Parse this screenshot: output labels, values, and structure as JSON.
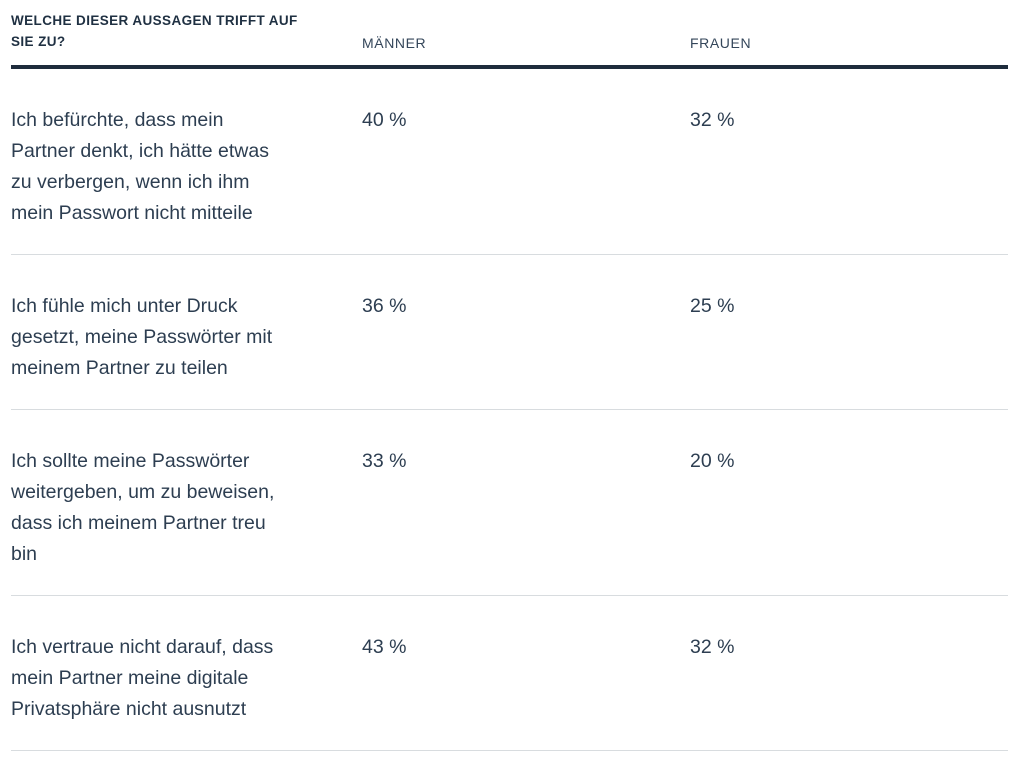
{
  "table": {
    "title": "WELCHE DIESER AUSSAGEN TRIFFT AUF\nSIE ZU?",
    "columns": [
      "MÄNNER",
      "FRAUEN"
    ],
    "rows": [
      {
        "statement": "Ich befürchte, dass mein\nPartner denkt, ich hätte etwas\nzu verbergen, wenn ich ihm\nmein Passwort nicht mitteile",
        "maenner": "40 %",
        "frauen": "32 %"
      },
      {
        "statement": "Ich fühle mich unter Druck\ngesetzt, meine Passwörter mit\nmeinem Partner zu teilen",
        "maenner": "36 %",
        "frauen": "25 %"
      },
      {
        "statement": "Ich sollte meine Passwörter\nweitergeben, um zu beweisen,\ndass ich meinem Partner treu\nbin",
        "maenner": "33 %",
        "frauen": "20 %"
      },
      {
        "statement": "Ich vertraue nicht darauf, dass\nmein Partner meine digitale\nPrivatsphäre nicht ausnutzt",
        "maenner": "43 %",
        "frauen": "32 %"
      }
    ]
  },
  "colors": {
    "title_text": "#1f3042",
    "header_text": "#34465a",
    "body_text": "#2d3e51",
    "heavy_rule": "#1e2c3c",
    "row_divider": "#d8dcdf",
    "background": "#ffffff"
  },
  "chart_data": {
    "type": "table",
    "title": "WELCHE DIESER AUSSAGEN TRIFFT AUF SIE ZU?",
    "categories": [
      "Ich befürchte, dass mein Partner denkt, ich hätte etwas zu verbergen, wenn ich ihm mein Passwort nicht mitteile",
      "Ich fühle mich unter Druck gesetzt, meine Passwörter mit meinem Partner zu teilen",
      "Ich sollte meine Passwörter weitergeben, um zu beweisen, dass ich meinem Partner treu bin",
      "Ich vertraue nicht darauf, dass mein Partner meine digitale Privatsphäre nicht ausnutzt"
    ],
    "series": [
      {
        "name": "MÄNNER",
        "values": [
          40,
          36,
          33,
          43
        ],
        "unit": "%"
      },
      {
        "name": "FRAUEN",
        "values": [
          32,
          25,
          20,
          32
        ],
        "unit": "%"
      }
    ],
    "layout": "statements left column, percentage values per gender column, no gridlines, horizontal row dividers"
  }
}
